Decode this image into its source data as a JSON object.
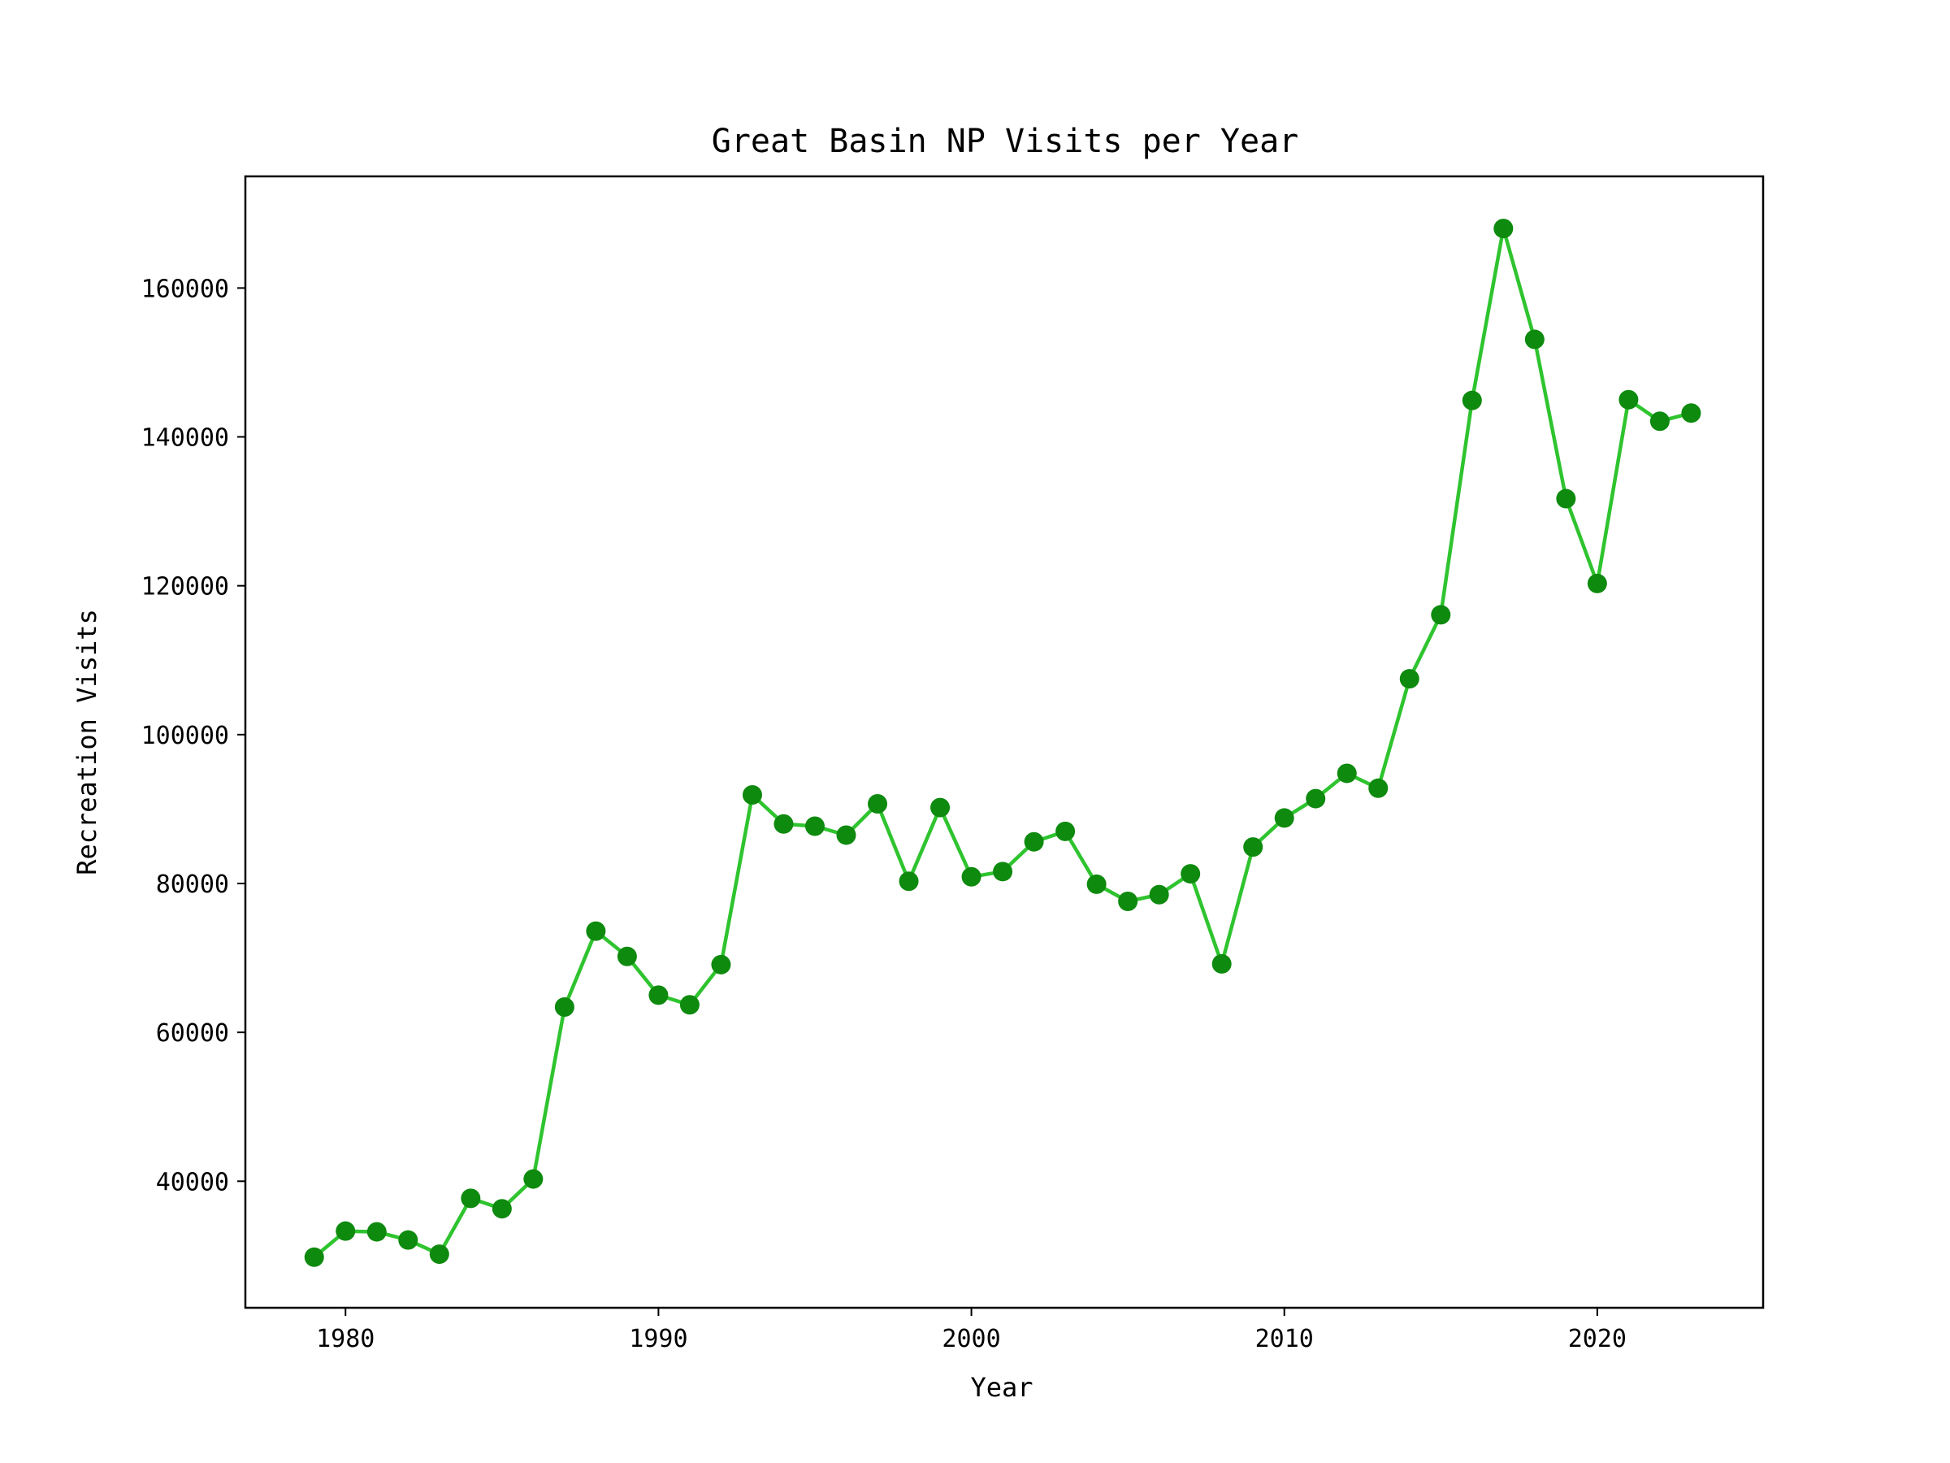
{
  "chart_data": {
    "type": "line",
    "title": "Great Basin NP Visits per Year",
    "xlabel": "Year",
    "ylabel": "Recreation Visits",
    "xlim": [
      1976.8,
      2025.3
    ],
    "ylim": [
      23000,
      175000
    ],
    "xticks": [
      1980,
      1990,
      2000,
      2010,
      2020
    ],
    "xtick_labels": [
      "1980",
      "1990",
      "2000",
      "2010",
      "2020"
    ],
    "yticks": [
      40000,
      60000,
      80000,
      100000,
      120000,
      140000,
      160000
    ],
    "ytick_labels": [
      "40000",
      "60000",
      "80000",
      "100000",
      "120000",
      "140000",
      "160000"
    ],
    "grid": false,
    "legend": "none",
    "series": [
      {
        "line_color": "#2fc42f",
        "marker_color": "#0e8a0e",
        "x": [
          1979,
          1980,
          1981,
          1982,
          1983,
          1984,
          1985,
          1986,
          1987,
          1988,
          1989,
          1990,
          1991,
          1992,
          1993,
          1994,
          1995,
          1996,
          1997,
          1998,
          1999,
          2000,
          2001,
          2002,
          2003,
          2004,
          2005,
          2006,
          2007,
          2008,
          2009,
          2010,
          2011,
          2012,
          2013,
          2014,
          2015,
          2016,
          2017,
          2018,
          2019,
          2020,
          2021,
          2022,
          2023
        ],
        "y": [
          29800,
          33300,
          33200,
          32100,
          30200,
          37700,
          36300,
          40300,
          63400,
          73600,
          70200,
          65000,
          63700,
          69100,
          91900,
          88000,
          87700,
          86500,
          90700,
          80300,
          90200,
          80900,
          81600,
          85600,
          87000,
          79900,
          77600,
          78500,
          81300,
          69200,
          84900,
          88800,
          91400,
          94800,
          92800,
          107500,
          116100,
          144900,
          168000,
          153100,
          131700,
          120300,
          145000,
          142100,
          143200
        ]
      }
    ]
  }
}
